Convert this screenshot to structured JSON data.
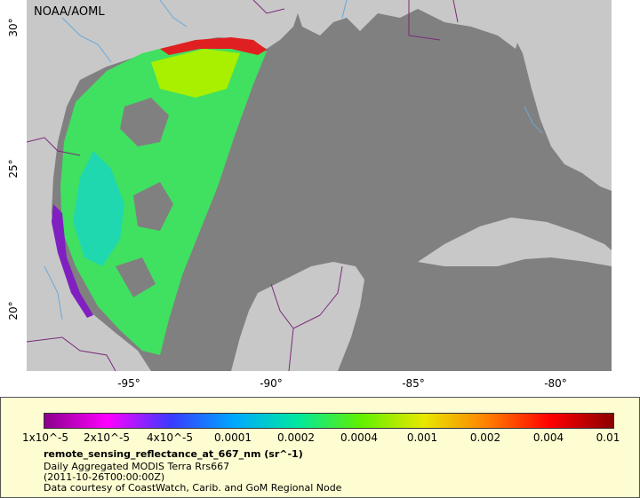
{
  "credit": "NOAA/AOML",
  "axes": {
    "y_ticks": [
      "30°",
      "25°",
      "20°"
    ],
    "x_ticks": [
      "-95°",
      "-90°",
      "-85°",
      "-80°"
    ]
  },
  "colors": {
    "ocean": "#808080",
    "land": "#c8c8c8",
    "border": "#7a2a7a",
    "river": "#6aa8d8"
  },
  "legend": {
    "colorbar_ticks": [
      "1x10^-5",
      "2x10^-5",
      "4x10^-5",
      "0.0001",
      "0.0002",
      "0.0004",
      "0.001",
      "0.002",
      "0.004",
      "0.01"
    ],
    "colorbar_colors": [
      "#8b008b",
      "#ff00ff",
      "#3a3aff",
      "#00a8ff",
      "#00e8a0",
      "#60f000",
      "#e8e800",
      "#ff8000",
      "#ff0000",
      "#8b0000"
    ],
    "variable": "remote_sensing_reflectance_at_667_nm (sr^-1)",
    "line1": "Daily Aggregated MODIS Terra Rrs667",
    "line2": "(2011-10-26T00:00:00Z)",
    "line3": "Data courtesy of CoastWatch, Carib. and GoM Regional Node"
  }
}
